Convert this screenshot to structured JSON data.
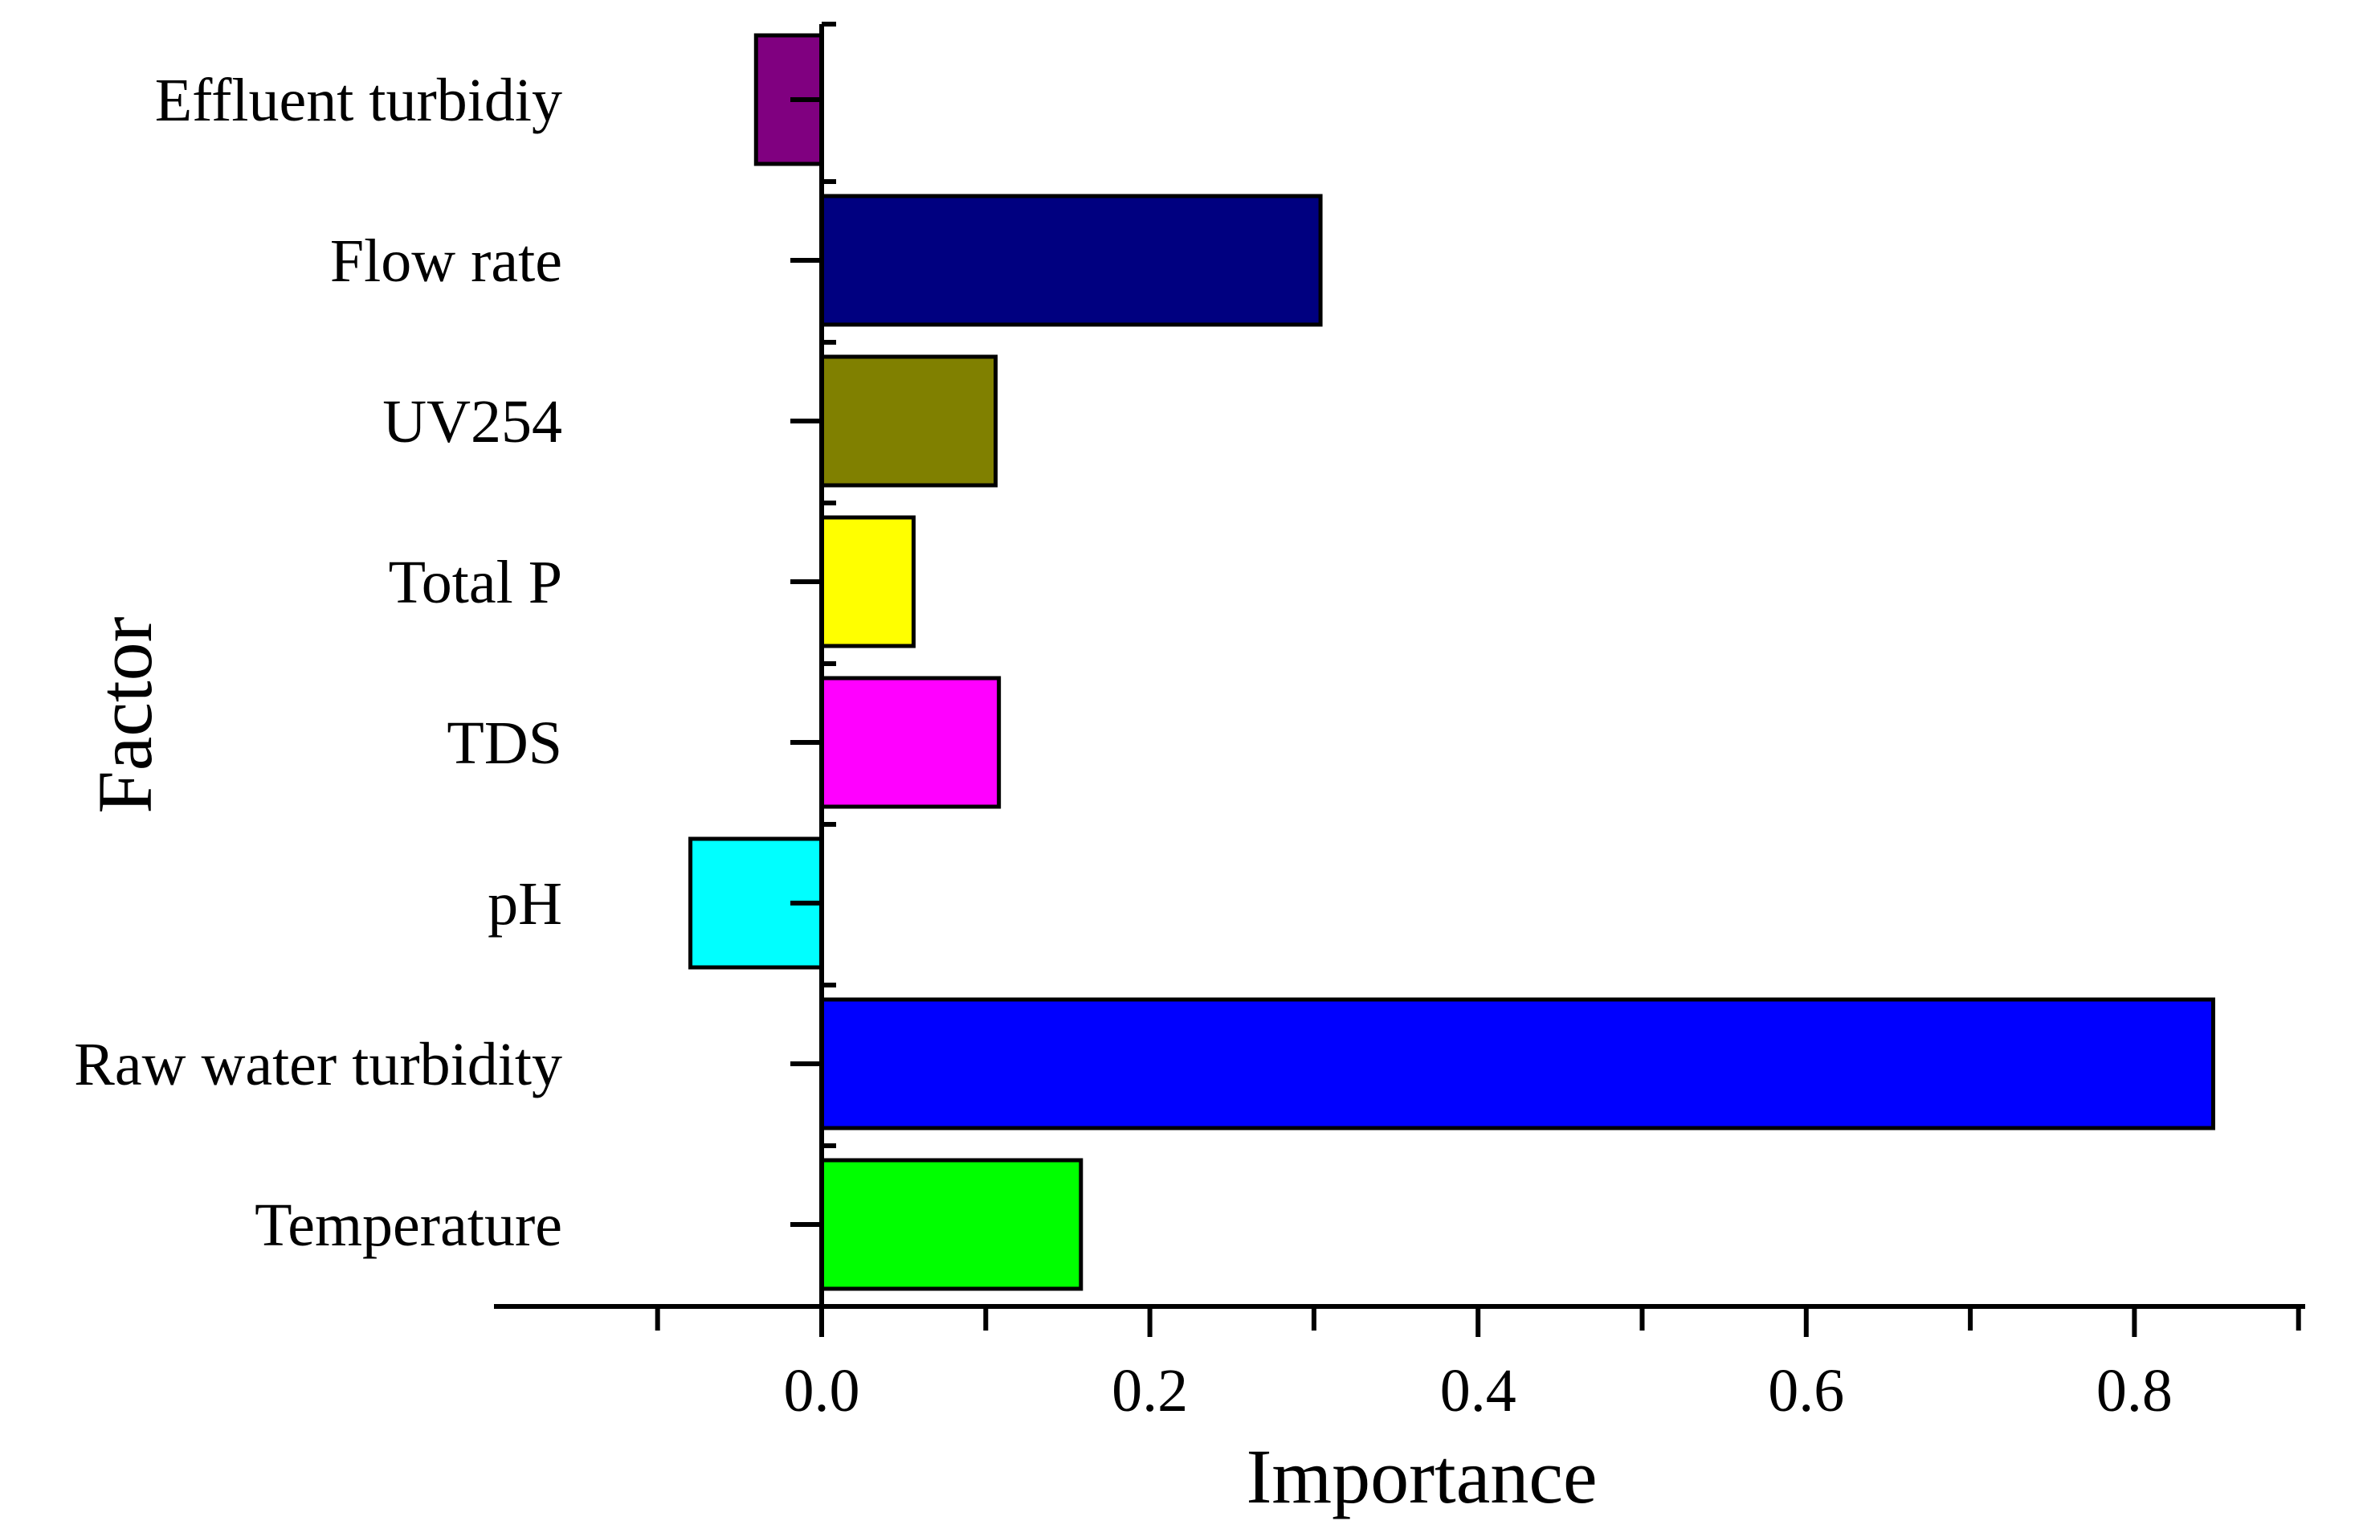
{
  "chart_data": {
    "type": "bar",
    "orientation": "horizontal",
    "title": "",
    "xlabel": "Importance",
    "ylabel": "Factor",
    "categories": [
      "Temperature",
      "Raw water turbidity",
      "pH",
      "TDS",
      "Total P",
      "UV254",
      "Flow rate",
      "Effluent turbidiy"
    ],
    "values": [
      0.158,
      0.848,
      -0.08,
      0.108,
      0.056,
      0.106,
      0.304,
      -0.04
    ],
    "colors": [
      "#00ff00",
      "#0000ff",
      "#00ffff",
      "#ff00ff",
      "#ffff00",
      "#808000",
      "#000080",
      "#800080"
    ],
    "xlim": [
      -0.2,
      0.93
    ],
    "xticks": [
      0.0,
      0.2,
      0.4,
      0.6,
      0.8
    ],
    "xtick_labels": [
      "0.0",
      "0.2",
      "0.4",
      "0.6",
      "0.8"
    ],
    "minor_xticks": [
      -0.1,
      0.1,
      0.3,
      0.5,
      0.7,
      0.9
    ],
    "grid": false,
    "legend": "none"
  }
}
